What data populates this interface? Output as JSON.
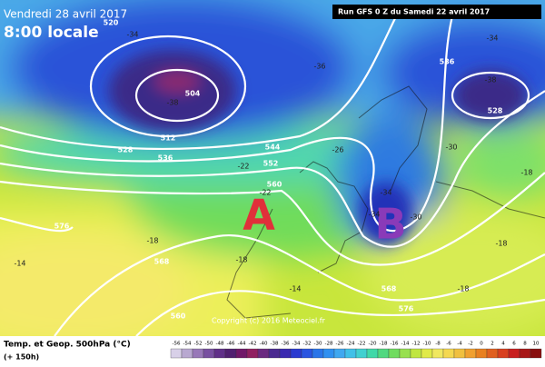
{
  "header": {
    "date": "Vendredi 28 avril 2017",
    "time": "8:00 locale",
    "run": "Run GFS 0 Z du Samedi 22 avril 2017"
  },
  "pressure": {
    "high": "A",
    "low": "B"
  },
  "copyright": "Copyright (c) 2016 Meteociel.fr",
  "geopotential_labels": [
    520,
    504,
    512,
    528,
    536,
    544,
    552,
    560,
    568,
    576,
    536,
    528,
    560,
    568,
    576
  ],
  "temperature_labels": [
    -34,
    -38,
    -34,
    -38,
    -36,
    -30,
    -26,
    -34,
    -34,
    -30,
    -22,
    -22,
    -18,
    -18,
    -14,
    -18,
    -18,
    -14,
    -18
  ],
  "legend": {
    "title": "Temp. et Geop. 500hPa (°C)",
    "subtitle": "(+ 150h)",
    "scale": [
      -56,
      -54,
      -52,
      -50,
      -48,
      -46,
      -44,
      -42,
      -40,
      -38,
      -36,
      -34,
      -32,
      -30,
      -28,
      -26,
      -24,
      -22,
      -20,
      -18,
      -16,
      -14,
      -12,
      -10,
      -8,
      -6,
      -4,
      -2,
      0,
      2,
      4,
      6,
      8,
      10
    ]
  }
}
